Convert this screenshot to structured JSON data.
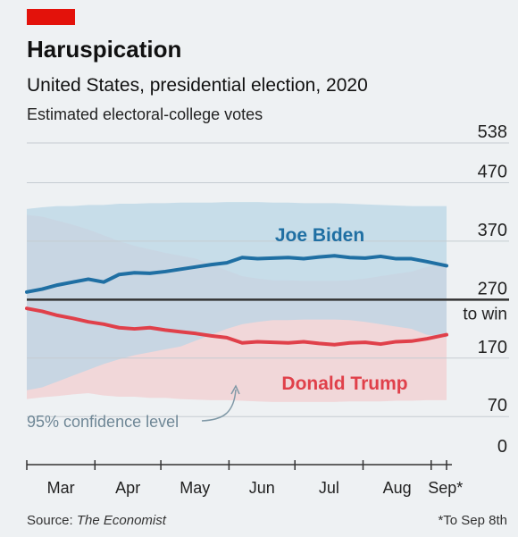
{
  "header": {
    "title": "Haruspication",
    "subtitle": "United States, presidential election, 2020",
    "unit_label": "Estimated electoral-college votes"
  },
  "footer": {
    "source_prefix": "Source: ",
    "source_name": "The Economist",
    "footnote": "*To Sep 8th"
  },
  "colors": {
    "brand_red": "#e3120b",
    "biden": "#1f6fa3",
    "trump": "#e0404a",
    "biden_band": "#b9d6e6",
    "trump_band": "#f1cdd0",
    "background": "#eef1f3"
  },
  "chart_data": {
    "type": "line",
    "title": "Haruspication",
    "subtitle": "United States, presidential election, 2020",
    "ylabel": "Estimated electoral-college votes",
    "ylim": [
      0,
      538
    ],
    "yticks": [
      0,
      70,
      170,
      270,
      370,
      470,
      538
    ],
    "threshold": {
      "value": 270,
      "label": "to win"
    },
    "x_ticks": [
      "Mar",
      "Apr",
      "May",
      "Jun",
      "Jul",
      "Aug",
      "Sep*"
    ],
    "x_start": "2020-03-01",
    "x_end": "2020-09-08",
    "annotation": "95% confidence level",
    "series": [
      {
        "name": "Joe Biden",
        "dates": [
          "2020-03-01",
          "2020-03-08",
          "2020-03-15",
          "2020-03-22",
          "2020-03-29",
          "2020-04-05",
          "2020-04-12",
          "2020-04-19",
          "2020-04-26",
          "2020-05-03",
          "2020-05-10",
          "2020-05-17",
          "2020-05-24",
          "2020-05-31",
          "2020-06-07",
          "2020-06-14",
          "2020-06-21",
          "2020-06-28",
          "2020-07-05",
          "2020-07-12",
          "2020-07-19",
          "2020-07-26",
          "2020-08-02",
          "2020-08-09",
          "2020-08-16",
          "2020-08-23",
          "2020-08-30",
          "2020-09-08"
        ],
        "values": [
          283,
          288,
          295,
          300,
          305,
          300,
          313,
          316,
          315,
          318,
          322,
          326,
          330,
          333,
          342,
          340,
          341,
          342,
          340,
          343,
          345,
          342,
          341,
          344,
          340,
          340,
          335,
          328
        ],
        "band_low": [
          115,
          120,
          130,
          140,
          150,
          160,
          168,
          175,
          180,
          185,
          190,
          200,
          210,
          220,
          228,
          232,
          235,
          235,
          236,
          236,
          236,
          235,
          232,
          228,
          224,
          220,
          210,
          205
        ],
        "band_high": [
          425,
          428,
          430,
          430,
          432,
          432,
          434,
          434,
          435,
          435,
          436,
          436,
          436,
          437,
          437,
          437,
          436,
          436,
          435,
          435,
          435,
          434,
          433,
          432,
          431,
          430,
          430,
          430
        ],
        "color": "#1f6fa3"
      },
      {
        "name": "Donald Trump",
        "dates": [
          "2020-03-01",
          "2020-03-08",
          "2020-03-15",
          "2020-03-22",
          "2020-03-29",
          "2020-04-05",
          "2020-04-12",
          "2020-04-19",
          "2020-04-26",
          "2020-05-03",
          "2020-05-10",
          "2020-05-17",
          "2020-05-24",
          "2020-05-31",
          "2020-06-07",
          "2020-06-14",
          "2020-06-21",
          "2020-06-28",
          "2020-07-05",
          "2020-07-12",
          "2020-07-19",
          "2020-07-26",
          "2020-08-02",
          "2020-08-09",
          "2020-08-16",
          "2020-08-23",
          "2020-08-30",
          "2020-09-08"
        ],
        "values": [
          255,
          250,
          243,
          238,
          232,
          228,
          222,
          220,
          222,
          218,
          215,
          212,
          208,
          205,
          196,
          198,
          197,
          196,
          198,
          195,
          193,
          196,
          197,
          194,
          198,
          199,
          203,
          210
        ],
        "band_low": [
          100,
          103,
          105,
          108,
          110,
          106,
          104,
          104,
          102,
          102,
          100,
          99,
          98,
          98,
          97,
          96,
          95,
          95,
          95,
          95,
          95,
          96,
          96,
          96,
          97,
          97,
          98,
          98
        ],
        "band_high": [
          415,
          412,
          405,
          398,
          390,
          380,
          370,
          362,
          356,
          350,
          345,
          340,
          330,
          320,
          310,
          306,
          303,
          303,
          302,
          302,
          302,
          303,
          306,
          310,
          314,
          318,
          326,
          333
        ],
        "color": "#e0404a"
      }
    ]
  }
}
